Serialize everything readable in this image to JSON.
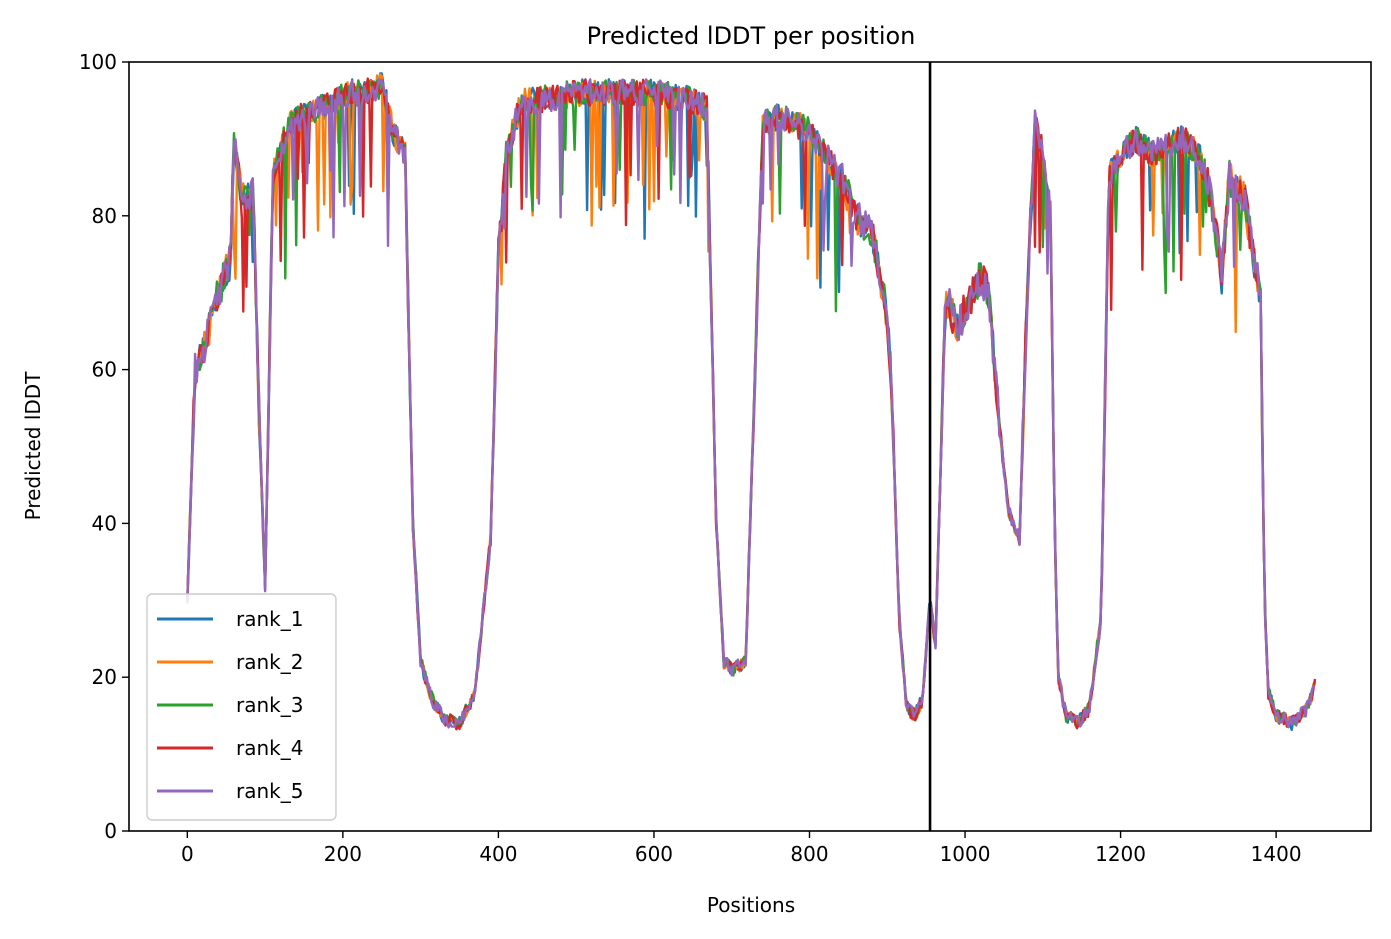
{
  "chart_data": {
    "type": "line",
    "title": "Predicted lDDT per position",
    "xlabel": "Positions",
    "ylabel": "Predicted lDDT",
    "xlim": [
      -75,
      1522
    ],
    "ylim": [
      0,
      100
    ],
    "xticks": [
      0,
      200,
      400,
      600,
      800,
      1000,
      1200,
      1400
    ],
    "yticks": [
      0,
      20,
      40,
      60,
      80,
      100
    ],
    "grid": false,
    "legend_position": "lower-left",
    "vline_x": 955,
    "vline_color": "#000000",
    "colors": {
      "rank_1": "#1f77b4",
      "rank_2": "#ff7f0e",
      "rank_3": "#2ca02c",
      "rank_4": "#d62728",
      "rank_5": "#9467bd"
    },
    "series_names": [
      "rank_1",
      "rank_2",
      "rank_3",
      "rank_4",
      "rank_5"
    ],
    "x_range": [
      0,
      1450
    ],
    "base_profile": [
      [
        0,
        30
      ],
      [
        10,
        60
      ],
      [
        25,
        64
      ],
      [
        40,
        70
      ],
      [
        55,
        74
      ],
      [
        60,
        90
      ],
      [
        70,
        82
      ],
      [
        85,
        83
      ],
      [
        92,
        55
      ],
      [
        100,
        32
      ],
      [
        110,
        85
      ],
      [
        130,
        92
      ],
      [
        150,
        93
      ],
      [
        170,
        94
      ],
      [
        190,
        95
      ],
      [
        210,
        96
      ],
      [
        230,
        96
      ],
      [
        250,
        97
      ],
      [
        265,
        91
      ],
      [
        280,
        88
      ],
      [
        290,
        40
      ],
      [
        300,
        22
      ],
      [
        315,
        17
      ],
      [
        330,
        14.5
      ],
      [
        350,
        14
      ],
      [
        370,
        18
      ],
      [
        390,
        38
      ],
      [
        400,
        75
      ],
      [
        410,
        88
      ],
      [
        430,
        95
      ],
      [
        450,
        95
      ],
      [
        500,
        96
      ],
      [
        550,
        96
      ],
      [
        600,
        96
      ],
      [
        650,
        95
      ],
      [
        668,
        94
      ],
      [
        680,
        40
      ],
      [
        690,
        22
      ],
      [
        700,
        21
      ],
      [
        718,
        22
      ],
      [
        730,
        60
      ],
      [
        740,
        92
      ],
      [
        760,
        93
      ],
      [
        780,
        92
      ],
      [
        800,
        91
      ],
      [
        820,
        88
      ],
      [
        840,
        85
      ],
      [
        860,
        80
      ],
      [
        880,
        78
      ],
      [
        895,
        70
      ],
      [
        905,
        60
      ],
      [
        915,
        28
      ],
      [
        925,
        16
      ],
      [
        935,
        15
      ],
      [
        945,
        17
      ],
      [
        955,
        30
      ],
      [
        962,
        24
      ],
      [
        975,
        70
      ],
      [
        990,
        65
      ],
      [
        1000,
        68
      ],
      [
        1010,
        70
      ],
      [
        1020,
        72
      ],
      [
        1030,
        70
      ],
      [
        1045,
        52
      ],
      [
        1055,
        42
      ],
      [
        1070,
        38
      ],
      [
        1080,
        70
      ],
      [
        1090,
        92
      ],
      [
        1100,
        88
      ],
      [
        1110,
        80
      ],
      [
        1115,
        40
      ],
      [
        1120,
        20
      ],
      [
        1130,
        15
      ],
      [
        1145,
        14
      ],
      [
        1160,
        16
      ],
      [
        1175,
        28
      ],
      [
        1185,
        85
      ],
      [
        1200,
        88
      ],
      [
        1220,
        90
      ],
      [
        1240,
        88
      ],
      [
        1260,
        89
      ],
      [
        1280,
        90
      ],
      [
        1300,
        88
      ],
      [
        1310,
        85
      ],
      [
        1320,
        80
      ],
      [
        1330,
        72
      ],
      [
        1340,
        85
      ],
      [
        1360,
        82
      ],
      [
        1370,
        75
      ],
      [
        1380,
        70
      ],
      [
        1385,
        30
      ],
      [
        1390,
        18
      ],
      [
        1400,
        15
      ],
      [
        1420,
        14
      ],
      [
        1440,
        16
      ],
      [
        1450,
        19
      ]
    ]
  }
}
